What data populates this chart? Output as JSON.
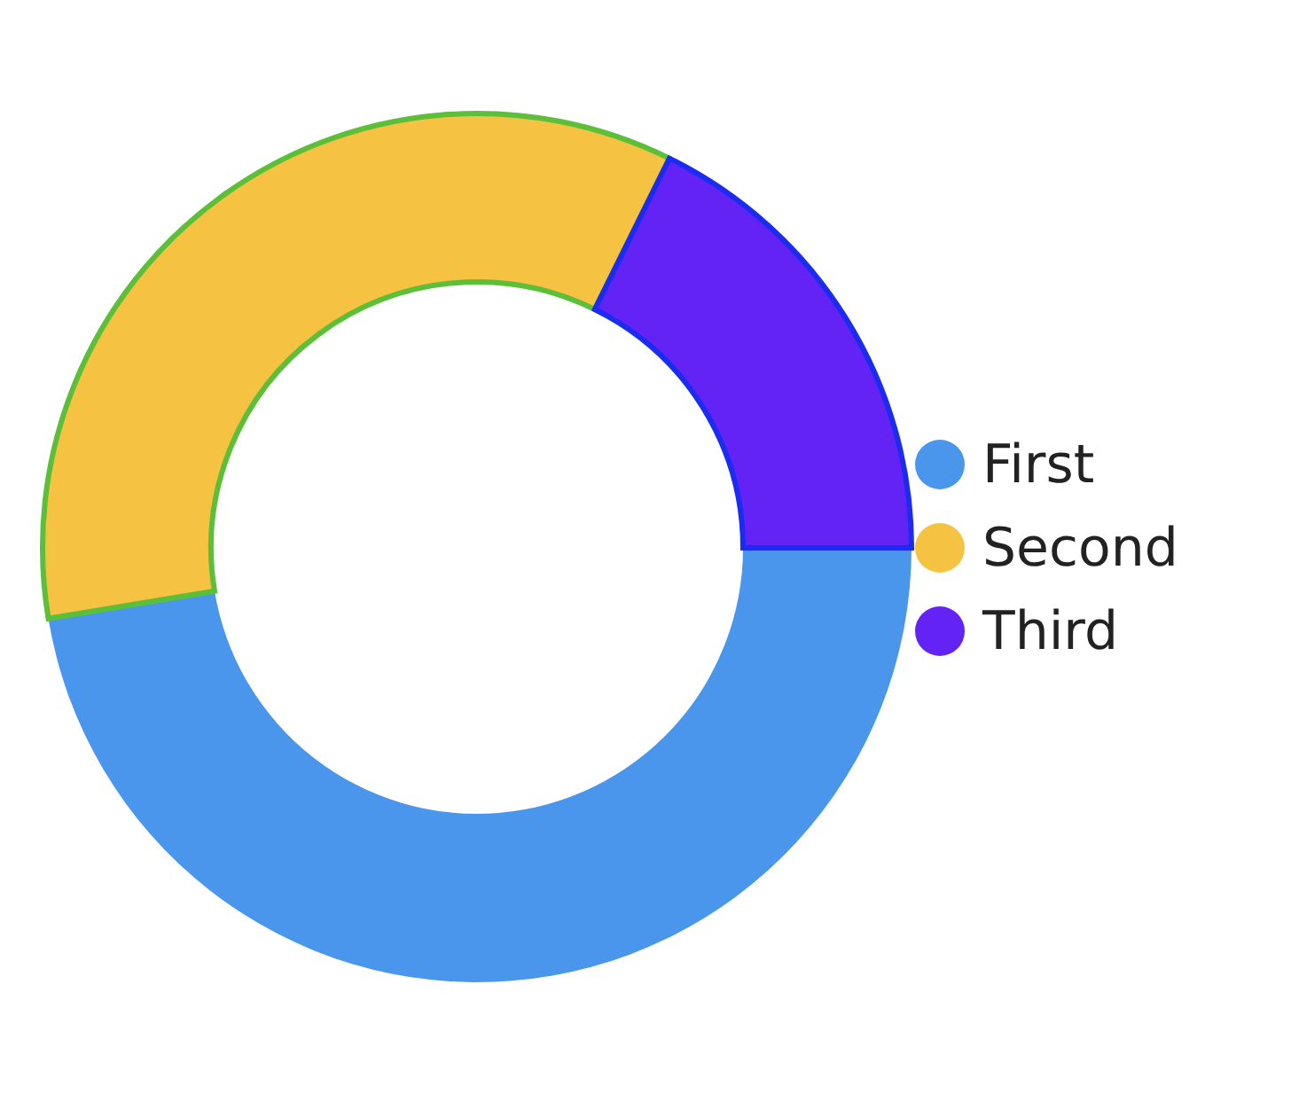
{
  "chart_data": {
    "type": "donut",
    "categories": [
      "First",
      "Second",
      "Third"
    ],
    "values": [
      47.4,
      34.9,
      17.7
    ],
    "colors": [
      "#4a96ec",
      "#f5c242",
      "#6423f5"
    ],
    "legend": "right"
  }
}
